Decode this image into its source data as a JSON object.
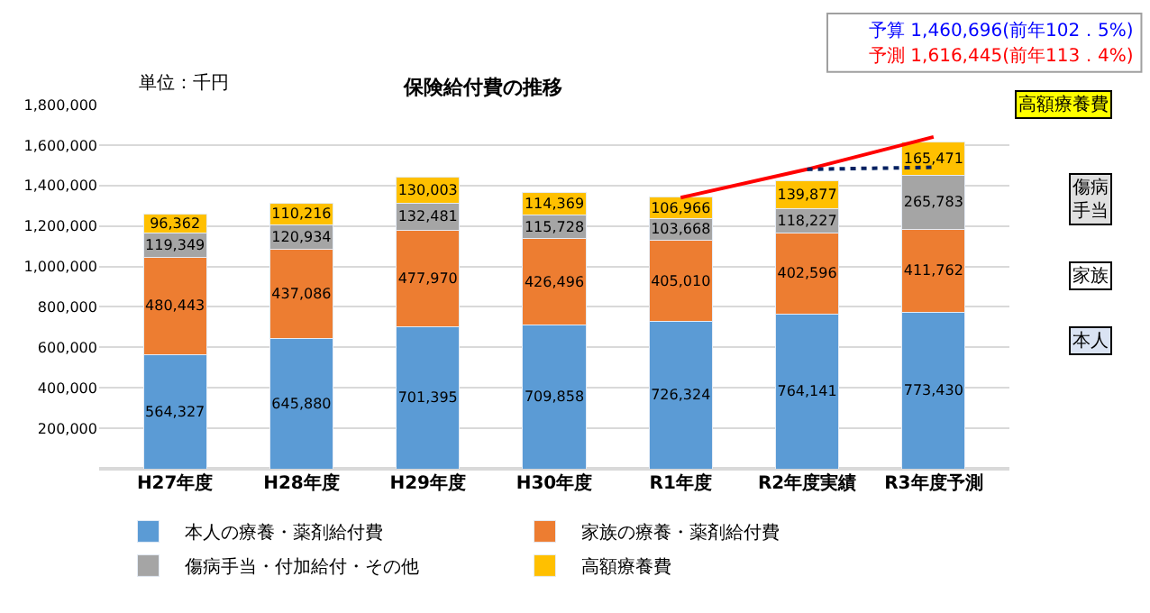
{
  "chart_data": {
    "type": "bar",
    "stacked": true,
    "title": "保険給付費の推移",
    "categories": [
      "H27年度",
      "H28年度",
      "H29年度",
      "H30年度",
      "R1年度",
      "R2年度実績",
      "R3年度予測"
    ],
    "series": [
      {
        "name": "本人の療養・薬剤給付費",
        "color": "#5b9bd5",
        "values": [
          564327,
          645880,
          701395,
          709858,
          726324,
          764141,
          773430
        ],
        "value_labels": [
          "564,327",
          "645,880",
          "701,395",
          "709,858",
          "726,324",
          "764,141",
          "773,430"
        ]
      },
      {
        "name": "家族の療養・薬剤給付費",
        "color": "#ed7d31",
        "values": [
          480443,
          437086,
          477970,
          426496,
          405010,
          402596,
          411762
        ],
        "value_labels": [
          "480,443",
          "437,086",
          "477,970",
          "426,496",
          "405,010",
          "402,596",
          "411,762"
        ]
      },
      {
        "name": "傷病手当・付加給付・その他",
        "color": "#a5a5a5",
        "values": [
          119349,
          120934,
          132481,
          115728,
          103668,
          118227,
          265783
        ],
        "value_labels": [
          "119,349",
          "120,934",
          "132,481",
          "115,728",
          "103,668",
          "118,227",
          "265,783"
        ]
      },
      {
        "name": "高額療養費",
        "color": "#ffc000",
        "values": [
          96362,
          110216,
          130003,
          114369,
          106966,
          139877,
          165471
        ],
        "value_labels": [
          "96,362",
          "110,216",
          "130,003",
          "114,369",
          "106,966",
          "139,877",
          "165,471"
        ]
      },
      {
        "type": "line",
        "color": "#ff0000",
        "line_style": "solid",
        "values": [
          null,
          null,
          null,
          null,
          1340000,
          1480000,
          1640000
        ]
      },
      {
        "type": "line",
        "color": "#002060",
        "line_style": "dotted",
        "values": [
          null,
          null,
          null,
          null,
          null,
          1480000,
          1490000
        ]
      }
    ],
    "ylim": [
      0,
      1800000
    ],
    "yticks": [
      {
        "value": 0,
        "label": null
      },
      {
        "value": 200000,
        "label": "200,000"
      },
      {
        "value": 400000,
        "label": "400,000"
      },
      {
        "value": 600000,
        "label": "600,000"
      },
      {
        "value": 800000,
        "label": "800,000"
      },
      {
        "value": 1000000,
        "label": "1,000,000"
      },
      {
        "value": 1200000,
        "label": "1,200,000"
      },
      {
        "value": 1400000,
        "label": "1,400,000"
      },
      {
        "value": 1600000,
        "label": "1,600,000"
      },
      {
        "value": 1800000,
        "label": "1,800,000"
      }
    ],
    "grid": "y",
    "legend": "bottom",
    "marker": "none",
    "annotations": [
      "単位：千円",
      "予算 1,460,696(前年102．5%)",
      "予測 1,616,445(前年113．4%)",
      "高額療養費",
      "傷病手当",
      "家族",
      "本人"
    ]
  }
}
